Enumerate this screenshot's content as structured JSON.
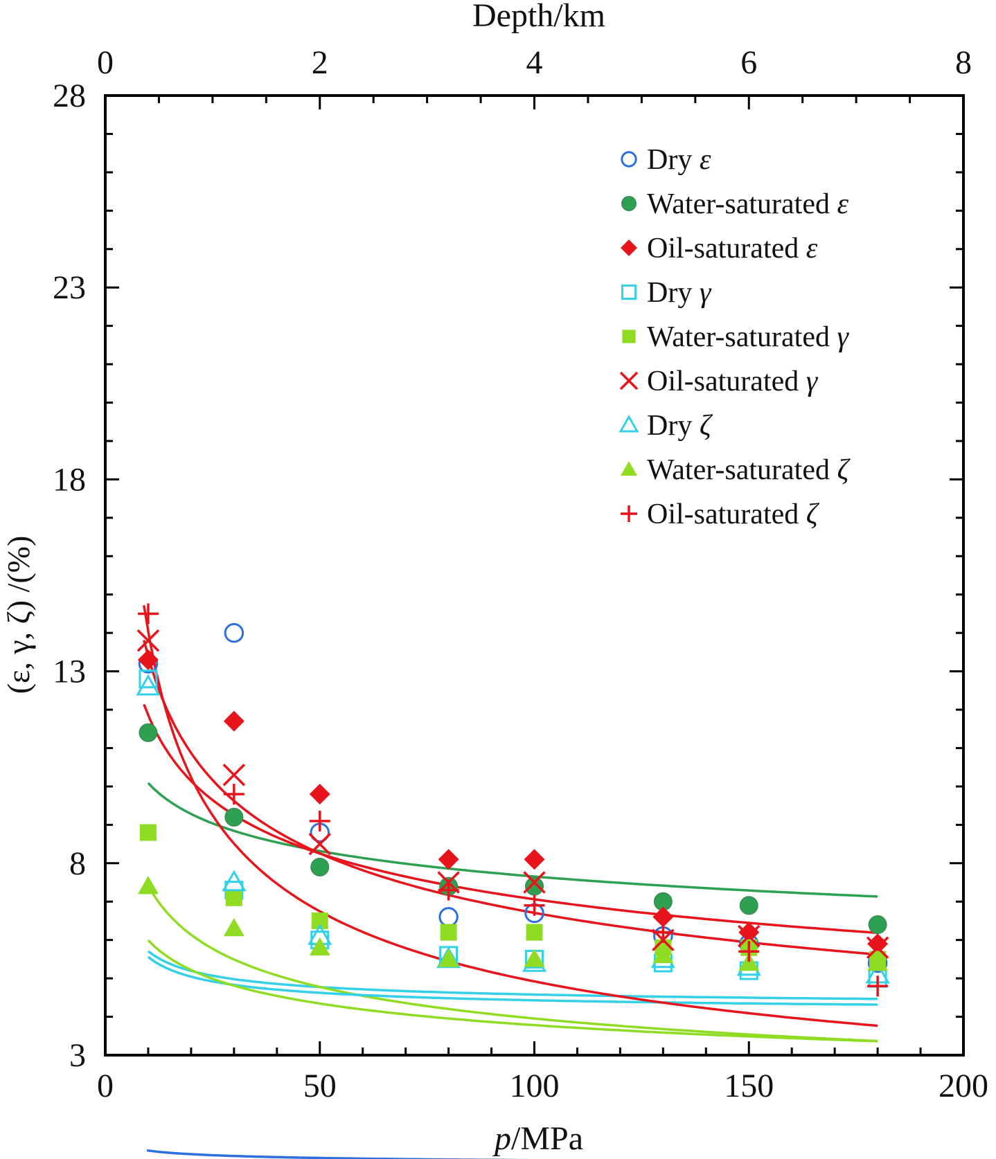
{
  "chart_data": {
    "type": "scatter",
    "title": "",
    "xlabel_italic": "p",
    "xlabel_rest": "/MPa",
    "top_xlabel": "Depth/km",
    "ylabel": "(ε, γ, ζ) /(%)",
    "xlim": [
      0,
      200
    ],
    "ylim": [
      3,
      28
    ],
    "top_xlim": [
      0,
      8
    ],
    "x_ticks": [
      "0",
      "50",
      "100",
      "150",
      "200"
    ],
    "y_ticks": [
      "3",
      "8",
      "13",
      "18",
      "23",
      "28"
    ],
    "top_ticks": [
      "0",
      "2",
      "4",
      "6",
      "8"
    ],
    "x": [
      10,
      30,
      50,
      80,
      100,
      130,
      150,
      180
    ],
    "legend_position": "top-right",
    "series": [
      {
        "name": "Dry ε",
        "legend_text": "Dry ",
        "legend_sym": "ε",
        "marker": "circle-open",
        "color": "#2b6fe0",
        "values": [
          13.2,
          14.0,
          8.8,
          6.6,
          6.7,
          6.1,
          5.9,
          5.4
        ],
        "fit": {
          "c": 1.0,
          "a": 0.29,
          "b": 0.0,
          "x0": 9.7,
          "x1": 180
        }
      },
      {
        "name": "Water-saturated ε",
        "legend_text": "Water-saturated ",
        "legend_sym": "ε",
        "marker": "circle-filled",
        "color": "#2ea052",
        "values": [
          11.4,
          9.2,
          7.9,
          7.4,
          7.4,
          7.0,
          6.9,
          6.4
        ],
        "fit": {
          "c": 13.3,
          "a": 0.12,
          "b": 0.0,
          "x0": 10,
          "x1": 180
        }
      },
      {
        "name": "Oil-saturated ε",
        "legend_text": "Oil-saturated ",
        "legend_sym": "ε",
        "marker": "diamond",
        "color": "#e8141c",
        "values": [
          13.3,
          11.7,
          9.8,
          8.1,
          8.1,
          6.6,
          6.2,
          5.9
        ],
        "fit": {
          "c": 19.9,
          "a": 0.225,
          "b": 0.0,
          "x0": 9,
          "x1": 180
        }
      },
      {
        "name": "Dry γ",
        "legend_text": "Dry ",
        "legend_sym": "γ",
        "marker": "square-open",
        "color": "#33d0e8",
        "values": [
          12.8,
          7.3,
          6.0,
          5.6,
          5.5,
          5.4,
          5.2,
          5.0
        ],
        "fit": {
          "c": 6.0,
          "a": 0.6,
          "b": 4.2,
          "x0": 10,
          "x1": 180
        }
      },
      {
        "name": "Water-saturated γ",
        "legend_text": "Water-saturated ",
        "legend_sym": "γ",
        "marker": "square-filled",
        "color": "#8fdc22",
        "values": [
          8.8,
          7.1,
          6.5,
          6.2,
          6.2,
          5.8,
          5.8,
          5.5
        ],
        "fit": {
          "c": 13.9,
          "a": 0.273,
          "b": 0.0,
          "x0": 10,
          "x1": 180
        }
      },
      {
        "name": "Oil-saturated γ",
        "legend_text": "Oil-saturated ",
        "legend_sym": "γ",
        "marker": "x-cross",
        "color": "#e8141c",
        "values": [
          13.8,
          10.3,
          8.5,
          7.5,
          7.5,
          6.0,
          6.1,
          5.8
        ],
        "fit": {
          "c": 26.7,
          "a": 0.3,
          "b": 0.0,
          "x0": 9,
          "x1": 180
        }
      },
      {
        "name": "Dry ζ",
        "legend_text": "Dry ",
        "legend_sym": "ζ",
        "marker": "triangle-open",
        "color": "#33d0e8",
        "values": [
          12.6,
          7.5,
          6.1,
          5.5,
          5.4,
          5.5,
          5.3,
          5.1
        ],
        "fit": {
          "c": 6.0,
          "a": 0.6,
          "b": 4.05,
          "x0": 10,
          "x1": 180
        }
      },
      {
        "name": "Water-saturated ζ",
        "legend_text": "Water-saturated ",
        "legend_sym": "ζ",
        "marker": "triangle-filled",
        "color": "#8fdc22",
        "values": [
          7.4,
          6.3,
          5.8,
          5.5,
          5.5,
          5.6,
          5.4,
          5.4
        ],
        "fit": {
          "c": 9.5,
          "a": 0.2,
          "b": 0.0,
          "x0": 10,
          "x1": 180
        }
      },
      {
        "name": "Oil-saturated ζ",
        "legend_text": "Oil-saturated ",
        "legend_sym": "ζ",
        "marker": "plus",
        "color": "#e8141c",
        "values": [
          14.5,
          9.8,
          9.1,
          7.3,
          6.9,
          6.2,
          5.7,
          4.8
        ],
        "fit": {
          "c": 40.0,
          "a": 0.455,
          "b": 0.0,
          "x0": 9,
          "x1": 180
        }
      }
    ]
  }
}
